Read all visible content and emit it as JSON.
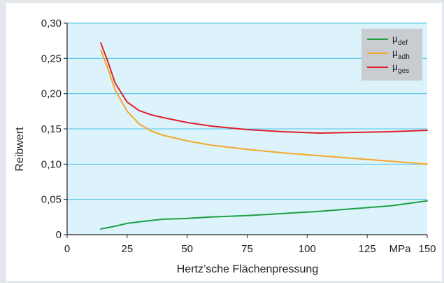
{
  "chart_data": {
    "type": "line",
    "xlabel": "Hertz’sche Flächenpressung",
    "ylabel": "Reibwert",
    "x_unit": "MPa",
    "xlim": [
      0,
      150
    ],
    "ylim": [
      0,
      0.3
    ],
    "x_ticks": [
      0,
      25,
      50,
      75,
      100,
      125,
      150
    ],
    "x_tick_labels": [
      "0",
      "25",
      "50",
      "75",
      "100",
      "125",
      "150"
    ],
    "y_ticks": [
      0,
      0.05,
      0.1,
      0.15,
      0.2,
      0.25,
      0.3
    ],
    "y_tick_labels": [
      "0",
      "0,05",
      "0,10",
      "0,15",
      "0,20",
      "0,25",
      "0,30"
    ],
    "grid": "horizontal",
    "legend_position": "top-right",
    "colors": {
      "plot_background": "#dcf3fb",
      "grid": "#4cc3e6",
      "legend_background": "#c9cdd1"
    },
    "series": [
      {
        "name": "μdef",
        "label_main": "μ",
        "label_sub": "def",
        "color": "#1e9e46",
        "x": [
          14,
          20,
          25,
          32,
          40,
          50,
          60,
          75,
          90,
          105,
          120,
          135,
          150
        ],
        "y": [
          0.008,
          0.012,
          0.016,
          0.019,
          0.022,
          0.023,
          0.025,
          0.027,
          0.03,
          0.033,
          0.037,
          0.041,
          0.048
        ]
      },
      {
        "name": "μadh",
        "label_main": "μ",
        "label_sub": "adh",
        "color": "#f4a82a",
        "x": [
          14,
          17,
          20,
          25,
          30,
          35,
          40,
          50,
          60,
          75,
          90,
          105,
          120,
          135,
          150
        ],
        "y": [
          0.262,
          0.235,
          0.205,
          0.175,
          0.157,
          0.147,
          0.141,
          0.133,
          0.127,
          0.121,
          0.116,
          0.112,
          0.108,
          0.104,
          0.1
        ]
      },
      {
        "name": "μges",
        "label_main": "μ",
        "label_sub": "ges",
        "color": "#e0202b",
        "x": [
          14,
          17,
          20,
          25,
          30,
          35,
          40,
          50,
          60,
          75,
          90,
          105,
          120,
          135,
          150
        ],
        "y": [
          0.272,
          0.245,
          0.215,
          0.188,
          0.176,
          0.17,
          0.166,
          0.159,
          0.154,
          0.149,
          0.146,
          0.144,
          0.145,
          0.146,
          0.148
        ]
      }
    ]
  }
}
